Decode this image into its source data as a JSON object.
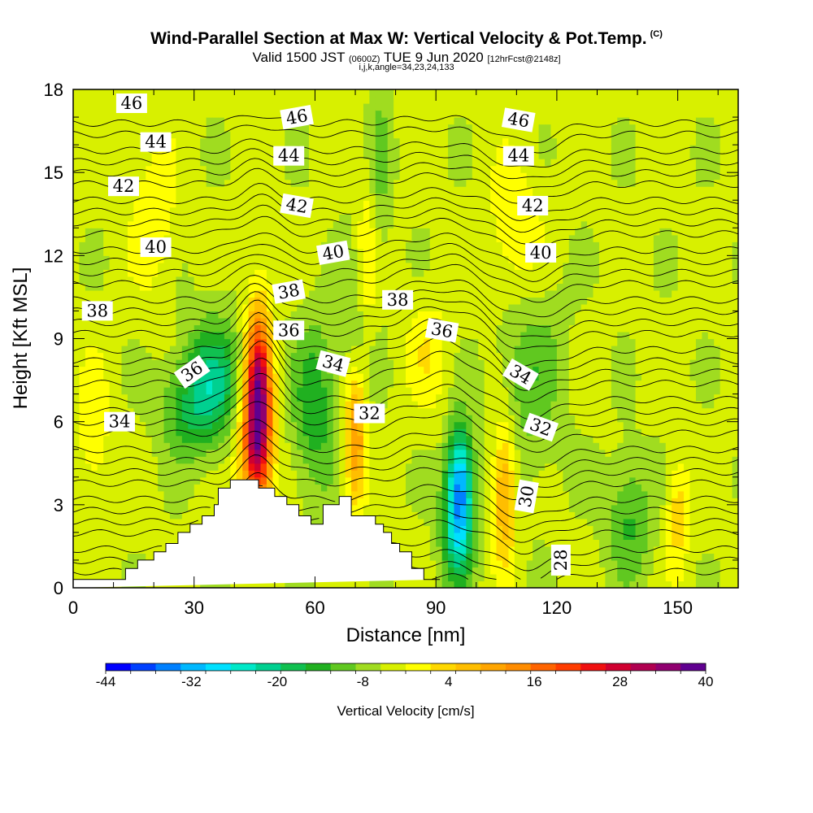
{
  "header": {
    "title": "Wind-Parallel Section at Max W: Vertical Velocity & Pot.Temp.",
    "copyright": "(C)",
    "valid_main": "Valid 1500 JST",
    "valid_utc": "(0600Z)",
    "valid_date": "TUE 9 Jun 2020",
    "forecast": "[12hrFcst@2148z]",
    "indices": "i,j,k,angle=34,23,24,133"
  },
  "chart_data": {
    "type": "heatmap",
    "xlabel": "Distance [nm]",
    "ylabel": "Height [Kft MSL]",
    "xlim": [
      0,
      165
    ],
    "ylim": [
      0,
      18
    ],
    "x_ticks": [
      0,
      30,
      60,
      90,
      120,
      150
    ],
    "y_ticks": [
      0,
      3,
      6,
      9,
      12,
      15,
      18
    ],
    "colorbar": {
      "title": "Vertical Velocity [cm/s]",
      "min": -44,
      "max": 40,
      "step": 4,
      "tick_labels": [
        "-44",
        "-32",
        "-20",
        "-8",
        "4",
        "16",
        "28",
        "40"
      ],
      "colors": [
        "#0000ff",
        "#0040ff",
        "#0080ff",
        "#00b8ff",
        "#00e0ff",
        "#00e8c8",
        "#00d090",
        "#10c050",
        "#20b020",
        "#60c820",
        "#a0dc20",
        "#d8f000",
        "#ffff00",
        "#ffd800",
        "#ffbe00",
        "#ffa500",
        "#ff8c00",
        "#ff6400",
        "#ff3c00",
        "#f01010",
        "#d00030",
        "#b00050",
        "#900070",
        "#600090"
      ]
    },
    "terrain_profile": {
      "x": [
        0,
        13,
        13,
        16,
        16,
        20,
        20,
        23,
        23,
        26,
        26,
        29,
        29,
        32,
        32,
        35,
        35,
        36,
        36,
        39,
        39,
        46,
        46,
        50,
        50,
        53,
        53,
        56,
        56,
        59,
        59,
        62,
        62,
        66,
        66,
        69,
        69,
        75,
        75,
        77,
        77,
        79,
        79,
        81,
        81,
        84,
        84,
        87,
        87,
        91,
        91,
        165
      ],
      "y": [
        0.3,
        0.3,
        0.7,
        0.7,
        1.0,
        1.0,
        1.3,
        1.3,
        1.6,
        1.6,
        2.0,
        2.0,
        2.3,
        2.3,
        2.6,
        2.6,
        3.0,
        3.0,
        3.6,
        3.6,
        3.9,
        3.9,
        3.6,
        3.6,
        3.3,
        3.3,
        3.0,
        3.0,
        2.6,
        2.6,
        2.3,
        2.3,
        3.0,
        3.0,
        3.3,
        3.3,
        2.6,
        2.6,
        2.3,
        2.3,
        2.0,
        2.0,
        1.6,
        1.6,
        1.3,
        1.3,
        0.7,
        0.7,
        0.3,
        0.3,
        0.3
      ]
    },
    "w_features": [
      {
        "x": 46,
        "y": 7.0,
        "sx": 2.2,
        "sy": 2.2,
        "w": 40
      },
      {
        "x": 45,
        "y": 5.0,
        "sx": 3.0,
        "sy": 1.8,
        "w": 22
      },
      {
        "x": 35,
        "y": 7.5,
        "sx": 5.0,
        "sy": 1.6,
        "w": -16
      },
      {
        "x": 28,
        "y": 6.5,
        "sx": 5.0,
        "sy": 1.2,
        "w": -10
      },
      {
        "x": 60,
        "y": 6.5,
        "sx": 4.0,
        "sy": 2.2,
        "w": -12
      },
      {
        "x": 70,
        "y": 5.5,
        "sx": 1.8,
        "sy": 1.8,
        "w": 22
      },
      {
        "x": 70,
        "y": 9.0,
        "sx": 2.5,
        "sy": 2.5,
        "w": -6
      },
      {
        "x": 96,
        "y": 3.6,
        "sx": 2.2,
        "sy": 1.6,
        "w": -30
      },
      {
        "x": 95,
        "y": 2.0,
        "sx": 3.0,
        "sy": 1.6,
        "w": -12
      },
      {
        "x": 107,
        "y": 3.5,
        "sx": 2.0,
        "sy": 1.8,
        "w": 18
      },
      {
        "x": 113,
        "y": 8.0,
        "sx": 6.0,
        "sy": 2.8,
        "w": -8
      },
      {
        "x": 110,
        "y": 12.5,
        "sx": 5.0,
        "sy": 2.0,
        "w": 8
      },
      {
        "x": 138,
        "y": 2.5,
        "sx": 4.0,
        "sy": 1.6,
        "w": -10
      },
      {
        "x": 150,
        "y": 2.6,
        "sx": 2.0,
        "sy": 1.4,
        "w": 10
      },
      {
        "x": 76,
        "y": 15.0,
        "sx": 2.0,
        "sy": 3.0,
        "w": -6
      },
      {
        "x": 73,
        "y": 12.0,
        "sx": 2.0,
        "sy": 2.0,
        "w": 8
      },
      {
        "x": 88,
        "y": 8.5,
        "sx": 4.0,
        "sy": 1.5,
        "w": 6
      },
      {
        "x": 20,
        "y": 13.5,
        "sx": 4.0,
        "sy": 2.0,
        "w": 6
      },
      {
        "x": 5,
        "y": 5.5,
        "sx": 3.0,
        "sy": 2.0,
        "w": 6
      }
    ],
    "isentropes": {
      "levels": [
        28,
        30,
        32,
        34,
        36,
        38,
        40,
        42,
        44,
        46
      ],
      "labels": [
        {
          "text": "46",
          "x": 14.5,
          "y": 17.5,
          "angle": 0
        },
        {
          "text": "44",
          "x": 20.5,
          "y": 16.1,
          "angle": 0
        },
        {
          "text": "42",
          "x": 12.5,
          "y": 14.5,
          "angle": 0
        },
        {
          "text": "40",
          "x": 20.5,
          "y": 12.3,
          "angle": 0
        },
        {
          "text": "38",
          "x": 6,
          "y": 10.0,
          "angle": 0
        },
        {
          "text": "34",
          "x": 11.5,
          "y": 6.0,
          "angle": 0
        },
        {
          "text": "36",
          "x": 29.5,
          "y": 7.8,
          "angle": -35
        },
        {
          "text": "46",
          "x": 55.5,
          "y": 17.0,
          "angle": -10
        },
        {
          "text": "44",
          "x": 53.5,
          "y": 15.6,
          "angle": 0
        },
        {
          "text": "42",
          "x": 55.5,
          "y": 13.8,
          "angle": 10
        },
        {
          "text": "40",
          "x": 64.5,
          "y": 12.1,
          "angle": -10
        },
        {
          "text": "38",
          "x": 53.5,
          "y": 10.7,
          "angle": -10
        },
        {
          "text": "36",
          "x": 53.5,
          "y": 9.3,
          "angle": 0
        },
        {
          "text": "34",
          "x": 64.5,
          "y": 8.1,
          "angle": 15
        },
        {
          "text": "32",
          "x": 73.5,
          "y": 6.3,
          "angle": 0
        },
        {
          "text": "38",
          "x": 80.5,
          "y": 10.4,
          "angle": 0
        },
        {
          "text": "36",
          "x": 91.5,
          "y": 9.3,
          "angle": 10
        },
        {
          "text": "34",
          "x": 111,
          "y": 7.7,
          "angle": 30
        },
        {
          "text": "32",
          "x": 116,
          "y": 5.8,
          "angle": 20
        },
        {
          "text": "30",
          "x": 112.5,
          "y": 3.3,
          "angle": -80
        },
        {
          "text": "28",
          "x": 121,
          "y": 1.0,
          "angle": -90
        },
        {
          "text": "46",
          "x": 110.5,
          "y": 16.9,
          "angle": 10
        },
        {
          "text": "44",
          "x": 110.5,
          "y": 15.6,
          "angle": 0
        },
        {
          "text": "42",
          "x": 114,
          "y": 13.8,
          "angle": 0
        },
        {
          "text": "40",
          "x": 116,
          "y": 12.1,
          "angle": 0
        }
      ]
    }
  }
}
